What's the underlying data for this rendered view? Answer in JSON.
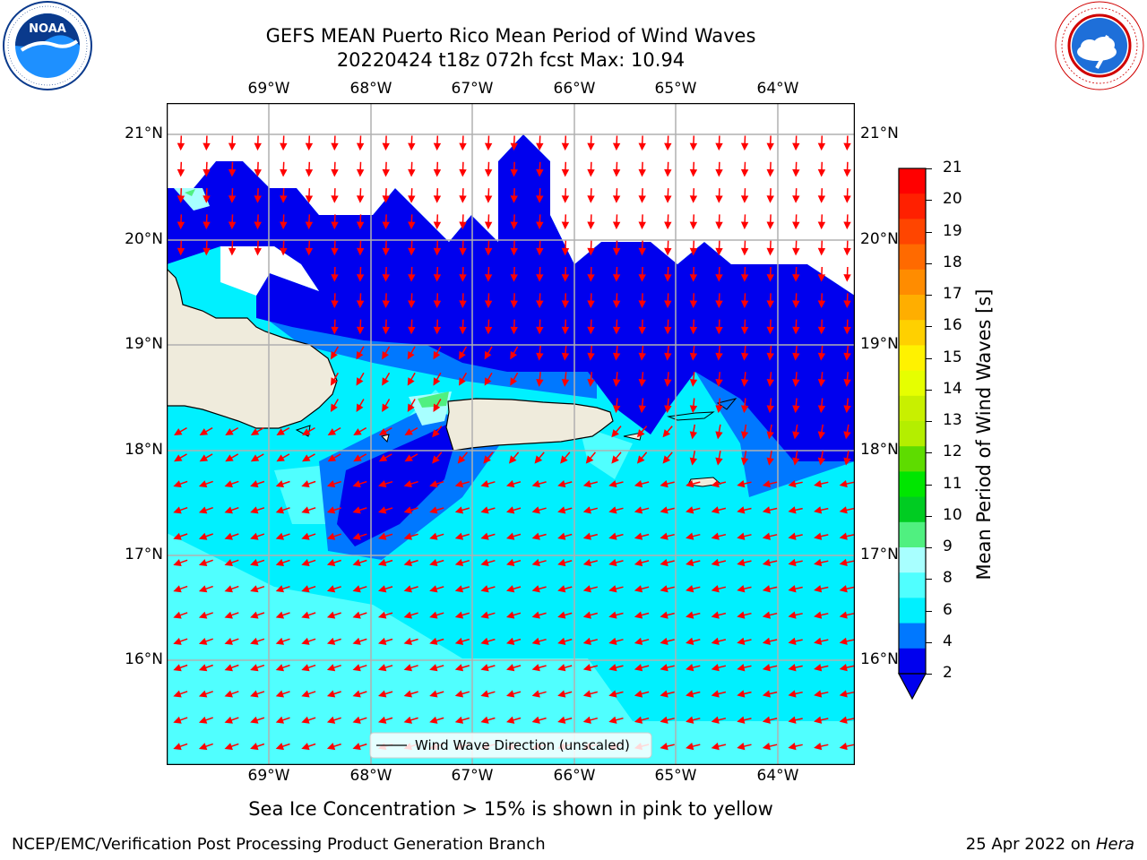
{
  "title": {
    "line1": "GEFS MEAN Puerto Rico Mean Period of Wind Waves",
    "line2": "20220424 t18z 072h fcst   Max: 10.94"
  },
  "logos": {
    "noaa": {
      "text": "NOAA",
      "ring_text": "NATIONAL OCEANIC AND ATMOSPHERIC ADMINISTRATION · U.S. DEPARTMENT OF COMMERCE",
      "colors": [
        "#0a3a8c",
        "#1e90ff"
      ]
    },
    "nws": {
      "ring_text": "NATIONAL WEATHER SERVICE",
      "colors": [
        "#d00000",
        "#1e6fd9"
      ]
    }
  },
  "map": {
    "lon_labels": [
      "69°W",
      "68°W",
      "67°W",
      "66°W",
      "65°W",
      "64°W"
    ],
    "lat_labels": [
      "21°N",
      "20°N",
      "19°N",
      "18°N",
      "17°N",
      "16°N"
    ],
    "legend_label": "Wind Wave Direction (unscaled)",
    "land_color": "#efebdc",
    "arrow_color": "#ff0000"
  },
  "colorbar": {
    "label": "Mean Period of Wind Waves [s]",
    "ticks": [
      "21",
      "20",
      "19",
      "18",
      "17",
      "16",
      "15",
      "14",
      "13",
      "12",
      "11",
      "10",
      "9",
      "8",
      "6",
      "4",
      "2"
    ],
    "colors": [
      "#ff0000",
      "#ff2000",
      "#ff4500",
      "#ff6a00",
      "#ff8c00",
      "#ffae00",
      "#ffd000",
      "#fff200",
      "#e6ff00",
      "#c8f000",
      "#b4ee00",
      "#5edc00",
      "#00e600",
      "#00cc22",
      "#50f080",
      "#a8ffff",
      "#50ffff",
      "#00f0ff",
      "#0078ff",
      "#0000ee"
    ]
  },
  "footer": {
    "ice_note": "Sea Ice Concentration > 15% is shown in pink to yellow",
    "org": "NCEP/EMC/Verification Post Processing Product Generation Branch",
    "date": "25 Apr 2022 on ",
    "host": "Hera"
  }
}
